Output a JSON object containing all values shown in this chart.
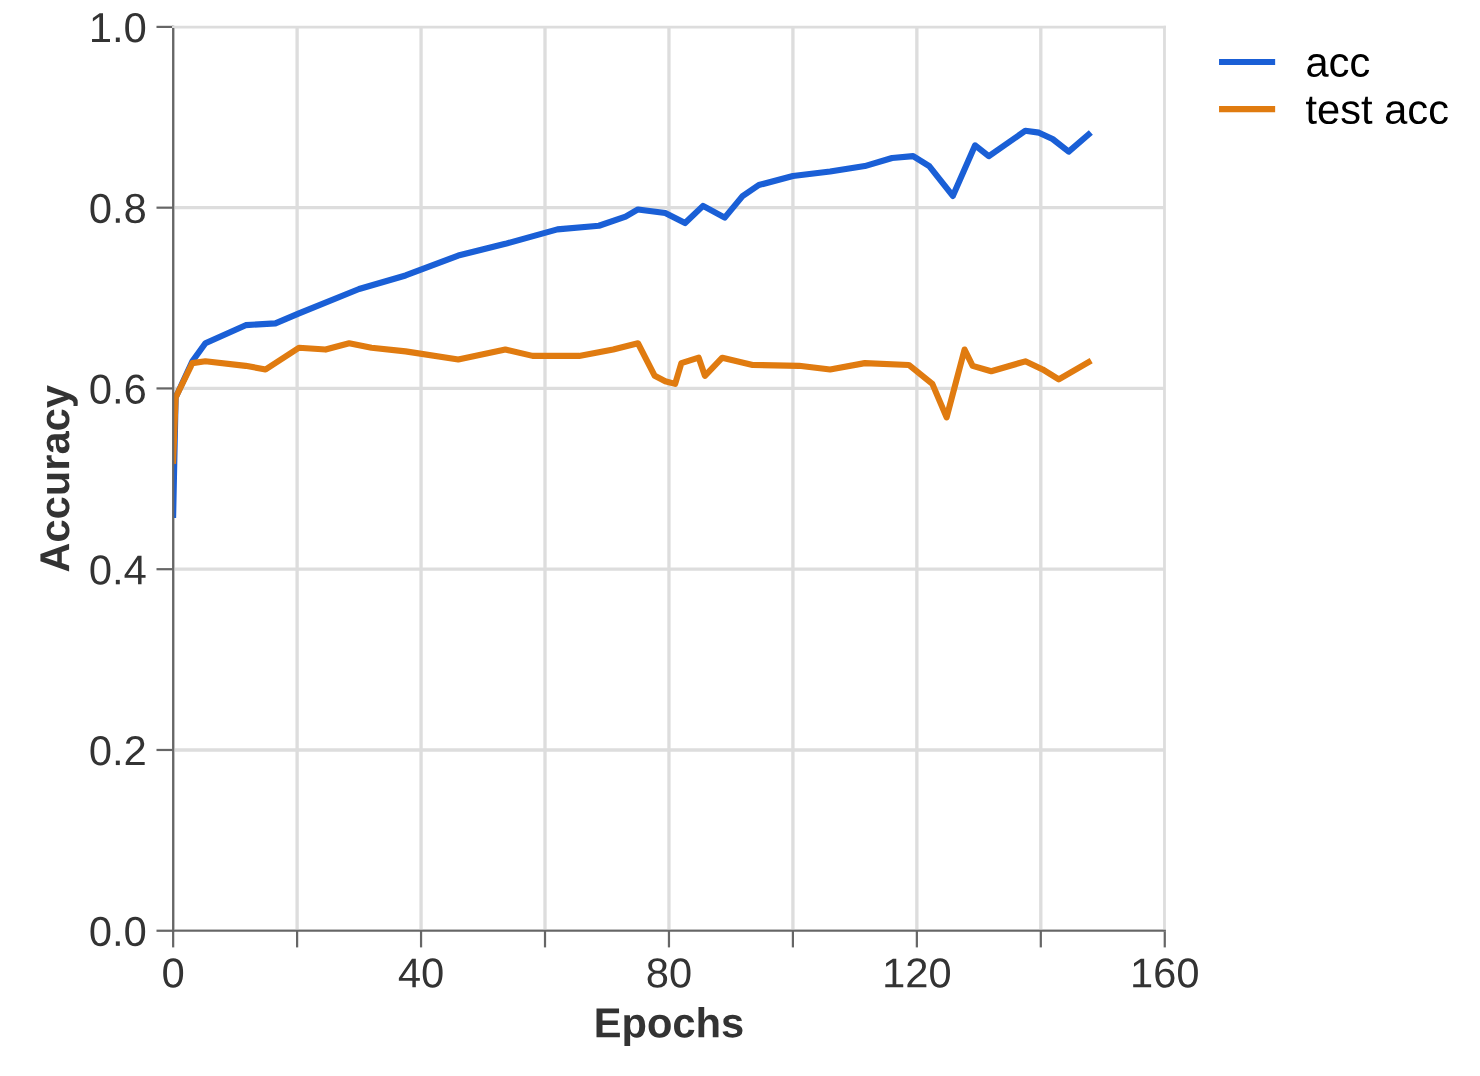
{
  "chart_data": {
    "type": "line",
    "xlabel": "Epochs",
    "ylabel": "Accuracy",
    "xlim": [
      0,
      160
    ],
    "xticks": [
      0,
      {
        "value": 20,
        "label": null
      },
      40,
      {
        "value": 60,
        "label": null
      },
      80,
      {
        "value": 100,
        "label": null
      },
      120,
      {
        "value": 140,
        "label": null
      },
      160
    ],
    "ylim": [
      0,
      1
    ],
    "yticks": [
      {
        "value": 0,
        "label": "0.0"
      },
      0.2,
      0.4,
      0.6,
      0.8,
      {
        "value": 1,
        "label": "1.0"
      }
    ],
    "grid": true,
    "legend": "top right",
    "marker": "none",
    "line_style": "solid",
    "series": [
      {
        "name": "acc",
        "color": "#1a5fd6",
        "x": [
          0,
          0.4,
          3.1,
          5.2,
          11.7,
          16.5,
          20.3,
          30,
          37.5,
          46,
          53.6,
          62,
          68.7,
          73,
          75,
          79.4,
          82.6,
          85.5,
          89,
          91.9,
          94.5,
          100,
          106,
          111.6,
          116,
          119.4,
          122,
          125.8,
          129.4,
          131.6,
          137.5,
          139.7,
          141.9,
          144.5,
          147.7
        ],
        "values": [
          0.46,
          0.59,
          0.63,
          0.65,
          0.67,
          0.672,
          0.683,
          0.71,
          0.725,
          0.747,
          0.76,
          0.776,
          0.78,
          0.79,
          0.798,
          0.794,
          0.783,
          0.802,
          0.789,
          0.813,
          0.825,
          0.835,
          0.84,
          0.846,
          0.855,
          0.857,
          0.846,
          0.813,
          0.869,
          0.857,
          0.885,
          0.883,
          0.876,
          0.862,
          0.881
        ]
      },
      {
        "name": "test acc",
        "color": "#e07b10",
        "x": [
          0,
          0.4,
          3.1,
          5.2,
          11.7,
          14.9,
          20.3,
          24.6,
          28.4,
          32,
          37.5,
          46,
          53.6,
          58,
          65.5,
          71,
          75,
          77.7,
          79.4,
          81,
          82,
          84.8,
          85.8,
          88.6,
          93.5,
          101,
          106,
          111.6,
          118.7,
          122.5,
          124.8,
          127.7,
          129,
          132,
          137.5,
          140.3,
          142.9,
          147.7
        ],
        "values": [
          0.52,
          0.59,
          0.628,
          0.63,
          0.625,
          0.621,
          0.645,
          0.643,
          0.65,
          0.645,
          0.641,
          0.632,
          0.643,
          0.636,
          0.636,
          0.643,
          0.65,
          0.614,
          0.608,
          0.605,
          0.628,
          0.634,
          0.614,
          0.634,
          0.626,
          0.625,
          0.621,
          0.628,
          0.626,
          0.605,
          0.568,
          0.643,
          0.625,
          0.619,
          0.63,
          0.621,
          0.61,
          0.629
        ]
      }
    ]
  }
}
